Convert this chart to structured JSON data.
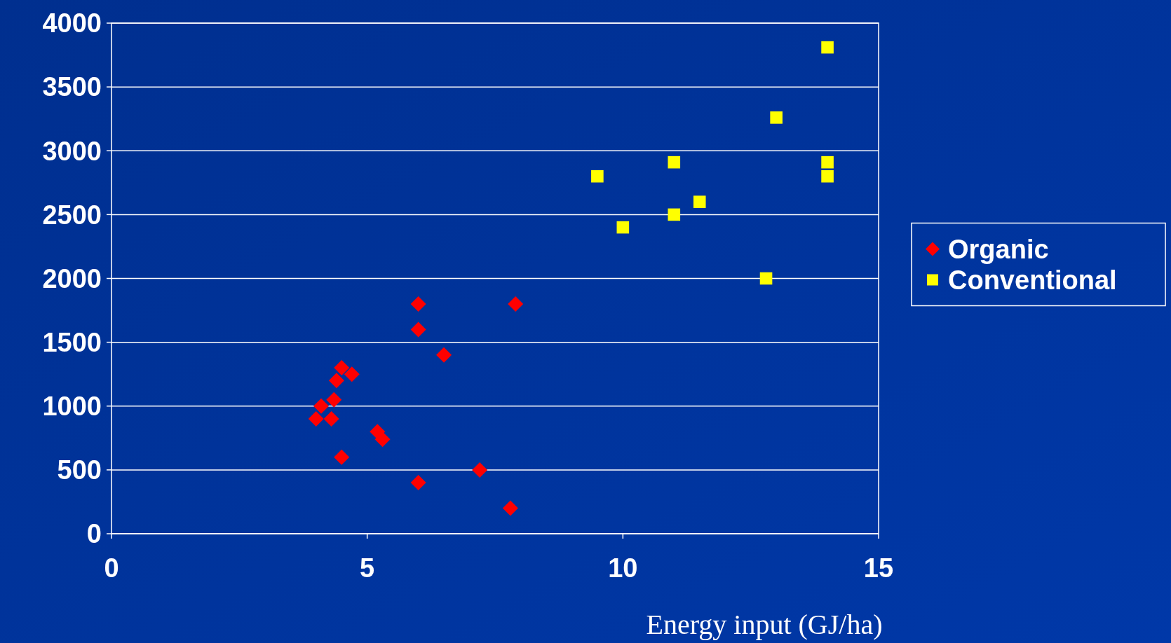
{
  "chart_data": {
    "type": "scatter",
    "xlabel": "Energy input (GJ/ha)",
    "xlim": [
      0,
      15
    ],
    "xticks": [
      0,
      5,
      10,
      15
    ],
    "ylim": [
      0,
      4000
    ],
    "yticks": [
      0,
      500,
      1000,
      1500,
      2000,
      2500,
      3000,
      3500,
      4000
    ],
    "grid": "y",
    "legend": "right",
    "series": [
      {
        "name": "Organic",
        "color": "#ff0000",
        "marker": "diamond",
        "x": [
          4.0,
          4.1,
          4.3,
          4.35,
          4.4,
          4.5,
          4.7,
          4.5,
          5.2,
          5.3,
          6.0,
          6.0,
          6.0,
          6.5,
          7.2,
          7.8,
          7.9
        ],
        "values": [
          900,
          1000,
          900,
          1050,
          1200,
          1300,
          1250,
          600,
          800,
          740,
          1800,
          1600,
          400,
          1400,
          500,
          200,
          1800
        ]
      },
      {
        "name": "Conventional",
        "color": "#ffff00",
        "marker": "square",
        "x": [
          9.5,
          10.0,
          11.0,
          11.0,
          11.5,
          12.8,
          13.0,
          14.0,
          14.0,
          14.0
        ],
        "values": [
          2800,
          2400,
          2910,
          2500,
          2600,
          2000,
          3260,
          3810,
          2910,
          2800
        ]
      }
    ]
  }
}
